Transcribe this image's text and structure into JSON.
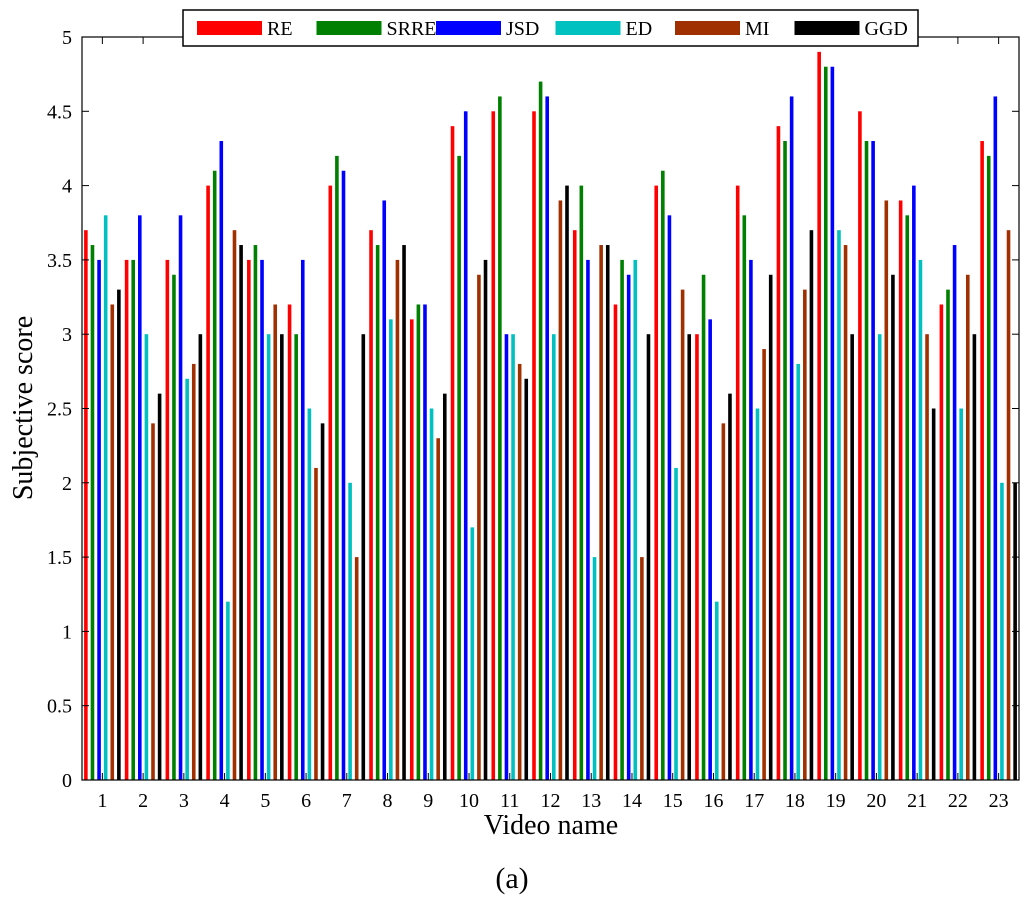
{
  "chart_data": {
    "type": "bar",
    "panel_label": "(a)",
    "xlabel": "Video name",
    "ylabel": "Subjective score",
    "ylim": [
      0,
      5
    ],
    "yticks": [
      "0",
      "0.5",
      "1",
      "1.5",
      "2",
      "2.5",
      "3",
      "3.5",
      "4",
      "4.5",
      "5"
    ],
    "ytick_values": [
      0,
      0.5,
      1,
      1.5,
      2,
      2.5,
      3,
      3.5,
      4,
      4.5,
      5
    ],
    "categories": [
      "1",
      "2",
      "3",
      "4",
      "5",
      "6",
      "7",
      "8",
      "9",
      "10",
      "11",
      "12",
      "13",
      "14",
      "15",
      "16",
      "17",
      "18",
      "19",
      "20",
      "21",
      "22",
      "23"
    ],
    "grid": false,
    "legend_position": "top",
    "series": [
      {
        "name": "RE",
        "color": "#ff0000",
        "values": [
          3.7,
          3.5,
          3.5,
          4.0,
          3.5,
          3.2,
          4.0,
          3.7,
          3.1,
          4.4,
          4.5,
          4.5,
          3.7,
          3.2,
          4.0,
          3.0,
          4.0,
          4.4,
          4.9,
          4.5,
          3.9,
          3.2,
          4.3
        ]
      },
      {
        "name": "SRRE",
        "color": "#008000",
        "values": [
          3.6,
          3.5,
          3.4,
          4.1,
          3.6,
          3.0,
          4.2,
          3.6,
          3.2,
          4.2,
          4.6,
          4.7,
          4.0,
          3.5,
          4.1,
          3.4,
          3.8,
          4.3,
          4.8,
          4.3,
          3.8,
          3.3,
          4.2
        ]
      },
      {
        "name": "JSD",
        "color": "#0000ff",
        "values": [
          3.5,
          3.8,
          3.8,
          4.3,
          3.5,
          3.5,
          4.1,
          3.9,
          3.2,
          4.5,
          3.0,
          4.6,
          3.5,
          3.4,
          3.8,
          3.1,
          3.5,
          4.6,
          4.8,
          4.3,
          4.0,
          3.6,
          4.6
        ]
      },
      {
        "name": "ED",
        "color": "#00c0c0",
        "values": [
          3.8,
          3.0,
          2.7,
          1.2,
          3.0,
          2.5,
          2.0,
          3.1,
          2.5,
          1.7,
          3.0,
          3.0,
          1.5,
          3.5,
          2.1,
          1.2,
          2.5,
          2.8,
          3.7,
          3.0,
          3.5,
          2.5,
          2.0
        ]
      },
      {
        "name": "MI",
        "color": "#a03000",
        "values": [
          3.2,
          2.4,
          2.8,
          3.7,
          3.2,
          2.1,
          1.5,
          3.5,
          2.3,
          3.4,
          2.8,
          3.9,
          3.6,
          1.5,
          3.3,
          2.4,
          2.9,
          3.3,
          3.6,
          3.9,
          3.0,
          3.4,
          3.7
        ]
      },
      {
        "name": "GGD",
        "color": "#000000",
        "values": [
          3.3,
          2.6,
          3.0,
          3.6,
          3.0,
          2.4,
          3.0,
          3.6,
          2.6,
          3.5,
          2.7,
          4.0,
          3.6,
          3.0,
          3.0,
          2.6,
          3.4,
          3.7,
          3.0,
          3.4,
          2.5,
          3.0,
          2.0
        ]
      }
    ]
  }
}
